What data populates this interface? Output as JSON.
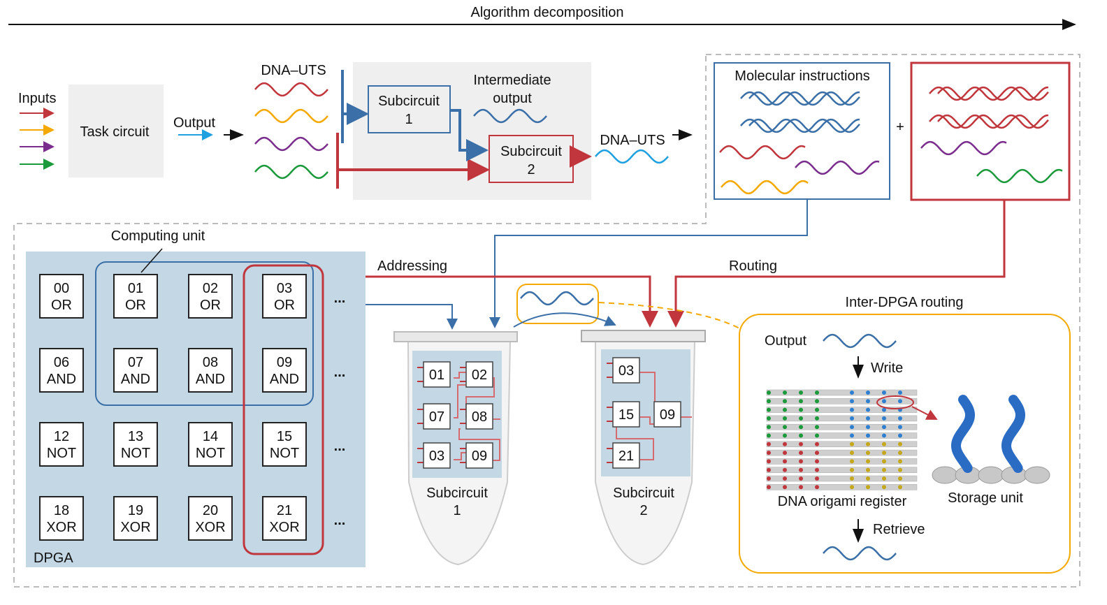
{
  "title": "Algorithm decomposition",
  "inputs_label": "Inputs",
  "task_circuit": "Task circuit",
  "output_label": "Output",
  "dna_uts_1": "DNA–UTS",
  "subcircuit1": [
    "Subcircuit",
    "1"
  ],
  "subcircuit2": [
    "Subcircuit",
    "2"
  ],
  "intermediate_output": [
    "Intermediate",
    "output"
  ],
  "dna_uts_2": "DNA–UTS",
  "molecular_instructions": "Molecular instructions",
  "plus": "+",
  "computing_unit": "Computing unit",
  "addressing": "Addressing",
  "routing": "Routing",
  "dpga_label": "DPGA",
  "ellipsis": "...",
  "gates": [
    [
      [
        "00",
        "OR"
      ],
      [
        "01",
        "OR"
      ],
      [
        "02",
        "OR"
      ],
      [
        "03",
        "OR"
      ]
    ],
    [
      [
        "06",
        "AND"
      ],
      [
        "07",
        "AND"
      ],
      [
        "08",
        "AND"
      ],
      [
        "09",
        "AND"
      ]
    ],
    [
      [
        "12",
        "NOT"
      ],
      [
        "13",
        "NOT"
      ],
      [
        "14",
        "NOT"
      ],
      [
        "15",
        "NOT"
      ]
    ],
    [
      [
        "18",
        "XOR"
      ],
      [
        "19",
        "XOR"
      ],
      [
        "20",
        "XOR"
      ],
      [
        "21",
        "XOR"
      ]
    ]
  ],
  "tube1": {
    "gates": [
      "01",
      "02",
      "07",
      "08",
      "03",
      "09"
    ],
    "label": [
      "Subcircuit",
      "1"
    ]
  },
  "tube2": {
    "gates": [
      "03",
      "15",
      "09",
      "21"
    ],
    "label": [
      "Subcircuit",
      "2"
    ]
  },
  "inter_dpga_routing": "Inter-DPGA routing",
  "inter_output": "Output",
  "write": "Write",
  "origami_register": "DNA origami register",
  "storage_unit": "Storage unit",
  "retrieve": "Retrieve",
  "colors": {
    "red": "#c0363c",
    "orange": "#f5a800",
    "purple": "#7b2d8e",
    "green": "#1a9a3a",
    "blue": "#3a6fa8",
    "cyan": "#1fa0e0",
    "panel": "#c3d7e4"
  }
}
